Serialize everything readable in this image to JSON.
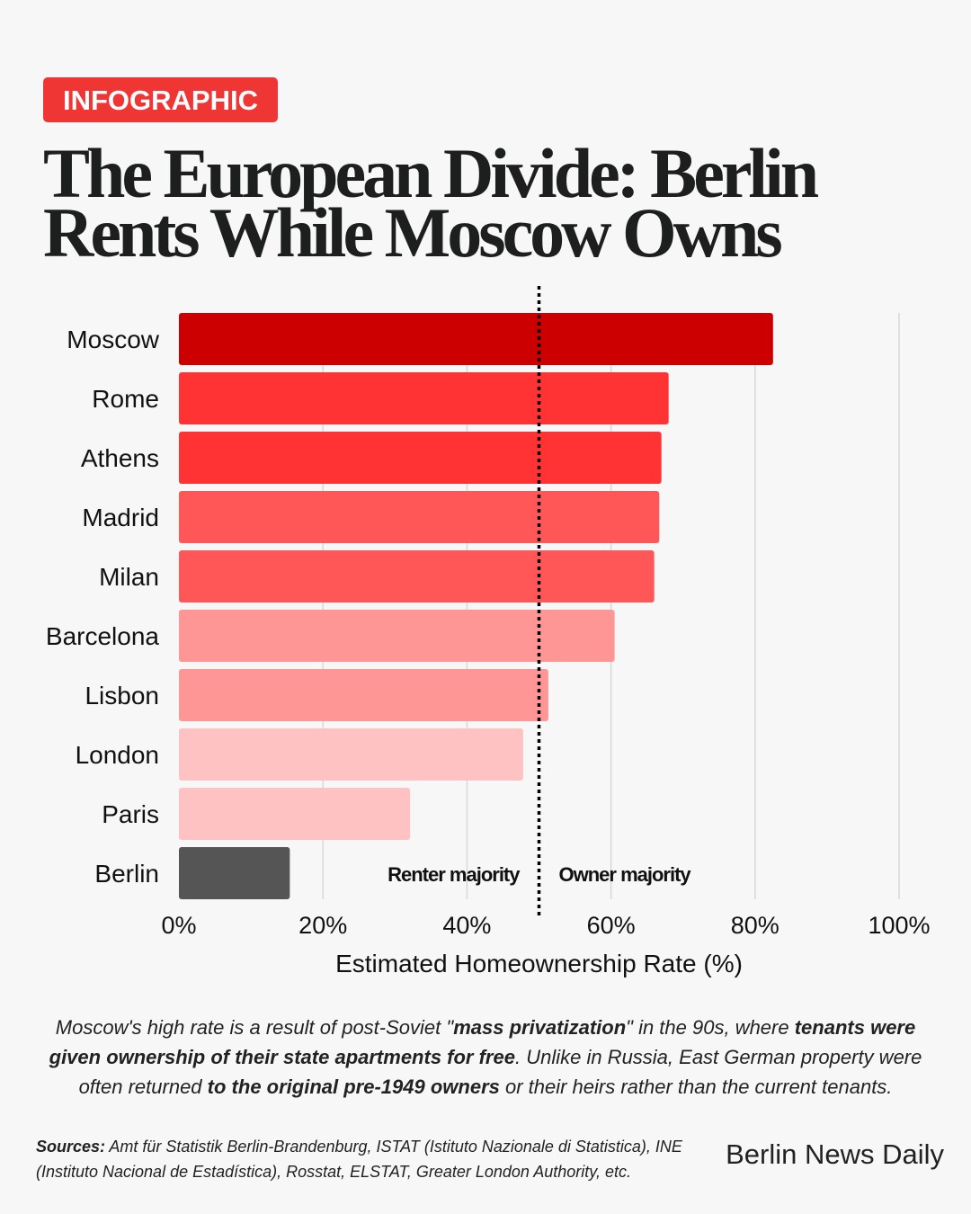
{
  "badge": "INFOGRAPHIC",
  "title": "The European Divide: Berlin Rents While Moscow Owns",
  "chart_data": {
    "type": "bar",
    "orientation": "horizontal",
    "categories": [
      "Moscow",
      "Rome",
      "Athens",
      "Madrid",
      "Milan",
      "Barcelona",
      "Lisbon",
      "London",
      "Paris",
      "Berlin"
    ],
    "values": [
      82.5,
      68,
      67,
      66.7,
      66,
      60.5,
      51.3,
      47.8,
      32.1,
      15.4
    ],
    "colors": [
      "#cc0000",
      "#ff3333",
      "#ff3333",
      "#ff5757",
      "#ff5757",
      "#ff9696",
      "#ff9696",
      "#ffc2c2",
      "#ffc2c2",
      "#555555"
    ],
    "xlabel": "Estimated Homeownership Rate (%)",
    "xlim": [
      0,
      100
    ],
    "xticks": [
      "0%",
      "20%",
      "40%",
      "60%",
      "80%",
      "100%"
    ],
    "xtick_values": [
      0,
      20,
      40,
      60,
      80,
      100
    ],
    "grid": "vertical",
    "reference_line": {
      "value": 50,
      "style": "dotted",
      "left_label": "Renter majority",
      "right_label": "Owner majority"
    }
  },
  "caption": {
    "parts": [
      {
        "t": "Moscow's high rate is a result of post-Soviet \"",
        "b": false
      },
      {
        "t": "mass privatization",
        "b": true
      },
      {
        "t": "\" in the 90s, where ",
        "b": false
      },
      {
        "t": "tenants were given ownership of their state apartments for free",
        "b": true
      },
      {
        "t": ". Unlike in Russia, East German property were often returned ",
        "b": false
      },
      {
        "t": "to the original pre-1949 owners",
        "b": true
      },
      {
        "t": " or their heirs rather than the current tenants.",
        "b": false
      }
    ]
  },
  "sources": {
    "label": "Sources:",
    "text": " Amt für Statistik Berlin-Brandenburg, ISTAT (Istituto Nazionale di Statistica), INE (Instituto Nacional de Estadística), Rosstat, ELSTAT, Greater London Authority, etc."
  },
  "brand": "Berlin News Daily"
}
